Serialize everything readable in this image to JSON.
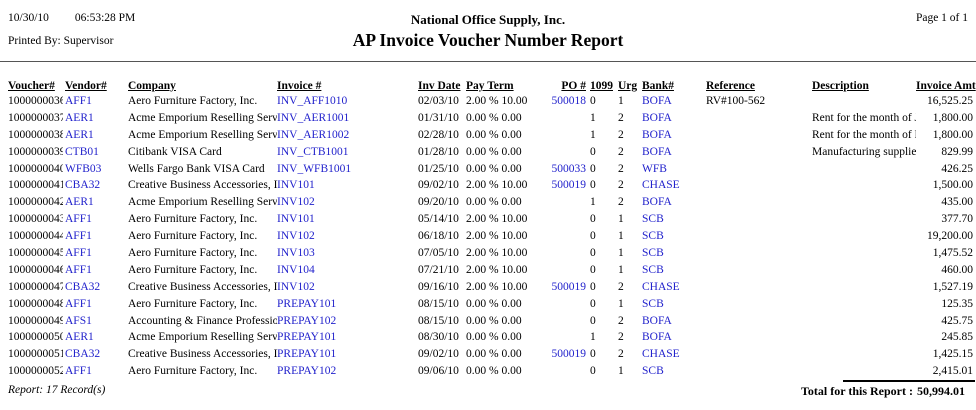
{
  "colors": {
    "link": "#2222cc",
    "text": "#000000",
    "rule": "#555555"
  },
  "page": {
    "date": "10/30/10",
    "time": "06:53:28 PM",
    "printed_by": "Printed By: Supervisor",
    "company_name": "National Office Supply, Inc.",
    "report_title": "AP Invoice Voucher Number Report",
    "page_indicator": "Page 1 of 1"
  },
  "table": {
    "columns": [
      {
        "key": "voucher",
        "label": "Voucher#"
      },
      {
        "key": "vendor",
        "label": "Vendor#",
        "link": true
      },
      {
        "key": "company",
        "label": "Company"
      },
      {
        "key": "invoice",
        "label": "Invoice #",
        "link": true
      },
      {
        "key": "inv_date",
        "label": "Inv Date"
      },
      {
        "key": "pay_term",
        "label": "Pay Term"
      },
      {
        "key": "po",
        "label": "PO #",
        "link": true
      },
      {
        "key": "1099",
        "label": "1099"
      },
      {
        "key": "urg",
        "label": "Urg"
      },
      {
        "key": "bank",
        "label": "Bank#",
        "link": true
      },
      {
        "key": "reference",
        "label": "Reference"
      },
      {
        "key": "description",
        "label": "Description"
      },
      {
        "key": "amount",
        "label": "Invoice Amt"
      }
    ],
    "rows": [
      {
        "voucher": "1000000036",
        "vendor": "AFF1",
        "company": "Aero Furniture Factory, Inc.",
        "invoice": "INV_AFF1010",
        "inv_date": "02/03/10",
        "pay_term": "2.00 % 10.00",
        "po": "500018",
        "1099": "0",
        "urg": "1",
        "bank": "BOFA",
        "reference": "RV#100-562",
        "description": "",
        "amount": "16,525.25"
      },
      {
        "voucher": "1000000037",
        "vendor": "AER1",
        "company": "Acme Emporium Reselling Servic",
        "invoice": "INV_AER1001",
        "inv_date": "01/31/10",
        "pay_term": "0.00 % 0.00",
        "po": "",
        "1099": "1",
        "urg": "2",
        "bank": "BOFA",
        "reference": "",
        "description": "Rent for the month of Ja",
        "amount": "1,800.00"
      },
      {
        "voucher": "1000000038",
        "vendor": "AER1",
        "company": "Acme Emporium Reselling Servic",
        "invoice": "INV_AER1002",
        "inv_date": "02/28/10",
        "pay_term": "0.00 % 0.00",
        "po": "",
        "1099": "1",
        "urg": "2",
        "bank": "BOFA",
        "reference": "",
        "description": "Rent for the month of F",
        "amount": "1,800.00"
      },
      {
        "voucher": "1000000039",
        "vendor": "CTB01",
        "company": "Citibank VISA Card",
        "invoice": "INV_CTB1001",
        "inv_date": "01/28/10",
        "pay_term": "0.00 % 0.00",
        "po": "",
        "1099": "0",
        "urg": "2",
        "bank": "BOFA",
        "reference": "",
        "description": "Manufacturing supplies",
        "amount": "829.99"
      },
      {
        "voucher": "1000000040",
        "vendor": "WFB03",
        "company": "Wells Fargo Bank VISA Card",
        "invoice": "INV_WFB1001",
        "inv_date": "01/25/10",
        "pay_term": "0.00 % 0.00",
        "po": "500033",
        "1099": "0",
        "urg": "2",
        "bank": "WFB",
        "reference": "",
        "description": "",
        "amount": "426.25"
      },
      {
        "voucher": "1000000041",
        "vendor": "CBA32",
        "company": "Creative Business Accessories, In",
        "invoice": "INV101",
        "inv_date": "09/02/10",
        "pay_term": "2.00 % 10.00",
        "po": "500019",
        "1099": "0",
        "urg": "2",
        "bank": "CHASE",
        "reference": "",
        "description": "",
        "amount": "1,500.00"
      },
      {
        "voucher": "1000000042",
        "vendor": "AER1",
        "company": "Acme Emporium Reselling Servic",
        "invoice": "INV102",
        "inv_date": "09/20/10",
        "pay_term": "0.00 % 0.00",
        "po": "",
        "1099": "1",
        "urg": "2",
        "bank": "BOFA",
        "reference": "",
        "description": "",
        "amount": "435.00"
      },
      {
        "voucher": "1000000043",
        "vendor": "AFF1",
        "company": "Aero Furniture Factory, Inc.",
        "invoice": "INV101",
        "inv_date": "05/14/10",
        "pay_term": "2.00 % 10.00",
        "po": "",
        "1099": "0",
        "urg": "1",
        "bank": "SCB",
        "reference": "",
        "description": "",
        "amount": "377.70"
      },
      {
        "voucher": "1000000044",
        "vendor": "AFF1",
        "company": "Aero Furniture Factory, Inc.",
        "invoice": "INV102",
        "inv_date": "06/18/10",
        "pay_term": "2.00 % 10.00",
        "po": "",
        "1099": "0",
        "urg": "1",
        "bank": "SCB",
        "reference": "",
        "description": "",
        "amount": "19,200.00"
      },
      {
        "voucher": "1000000045",
        "vendor": "AFF1",
        "company": "Aero Furniture Factory, Inc.",
        "invoice": "INV103",
        "inv_date": "07/05/10",
        "pay_term": "2.00 % 10.00",
        "po": "",
        "1099": "0",
        "urg": "1",
        "bank": "SCB",
        "reference": "",
        "description": "",
        "amount": "1,475.52"
      },
      {
        "voucher": "1000000046",
        "vendor": "AFF1",
        "company": "Aero Furniture Factory, Inc.",
        "invoice": "INV104",
        "inv_date": "07/21/10",
        "pay_term": "2.00 % 10.00",
        "po": "",
        "1099": "0",
        "urg": "1",
        "bank": "SCB",
        "reference": "",
        "description": "",
        "amount": "460.00"
      },
      {
        "voucher": "1000000047",
        "vendor": "CBA32",
        "company": "Creative Business Accessories, In",
        "invoice": "INV102",
        "inv_date": "09/16/10",
        "pay_term": "2.00 % 10.00",
        "po": "500019",
        "1099": "0",
        "urg": "2",
        "bank": "CHASE",
        "reference": "",
        "description": "",
        "amount": "1,527.19"
      },
      {
        "voucher": "1000000048",
        "vendor": "AFF1",
        "company": "Aero Furniture Factory, Inc.",
        "invoice": "PREPAY101",
        "inv_date": "08/15/10",
        "pay_term": "0.00 % 0.00",
        "po": "",
        "1099": "0",
        "urg": "1",
        "bank": "SCB",
        "reference": "",
        "description": "",
        "amount": "125.35"
      },
      {
        "voucher": "1000000049",
        "vendor": "AFS1",
        "company": "Accounting & Finance Profession",
        "invoice": "PREPAY102",
        "inv_date": "08/15/10",
        "pay_term": "0.00 % 0.00",
        "po": "",
        "1099": "0",
        "urg": "2",
        "bank": "BOFA",
        "reference": "",
        "description": "",
        "amount": "425.75"
      },
      {
        "voucher": "1000000050",
        "vendor": "AER1",
        "company": "Acme Emporium Reselling Servic",
        "invoice": "PREPAY101",
        "inv_date": "08/30/10",
        "pay_term": "0.00 % 0.00",
        "po": "",
        "1099": "1",
        "urg": "2",
        "bank": "BOFA",
        "reference": "",
        "description": "",
        "amount": "245.85"
      },
      {
        "voucher": "1000000051",
        "vendor": "CBA32",
        "company": "Creative Business Accessories, In",
        "invoice": "PREPAY101",
        "inv_date": "09/02/10",
        "pay_term": "0.00 % 0.00",
        "po": "500019",
        "1099": "0",
        "urg": "2",
        "bank": "CHASE",
        "reference": "",
        "description": "",
        "amount": "1,425.15"
      },
      {
        "voucher": "1000000052",
        "vendor": "AFF1",
        "company": "Aero Furniture Factory, Inc.",
        "invoice": "PREPAY102",
        "inv_date": "09/06/10",
        "pay_term": "0.00 % 0.00",
        "po": "",
        "1099": "0",
        "urg": "1",
        "bank": "SCB",
        "reference": "",
        "description": "",
        "amount": "2,415.01"
      }
    ]
  },
  "footer": {
    "record_count": "Report: 17 Record(s)",
    "total_label": "Total for this Report :",
    "total_amount": "50,994.01"
  }
}
